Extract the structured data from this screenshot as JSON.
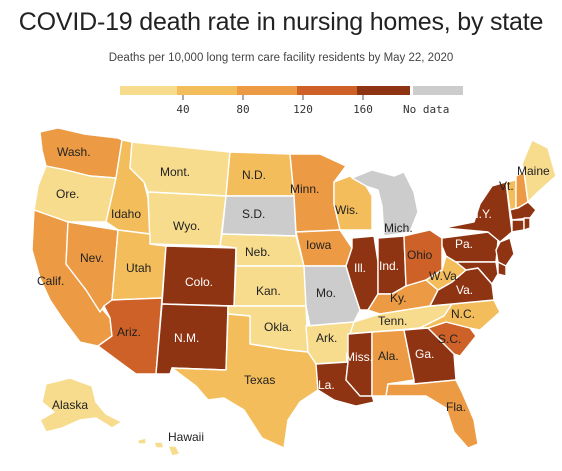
{
  "title": "COVID-19 death rate in nursing homes, by state",
  "subtitle": "Deaths per 10,000 long term care facility residents by May 22, 2020",
  "legend": {
    "bins": [
      {
        "color": "#f7dc8e"
      },
      {
        "color": "#f3bd5b"
      },
      {
        "color": "#ec9a43"
      },
      {
        "color": "#cd6128"
      },
      {
        "color": "#8f3413"
      }
    ],
    "ticks": [
      "40",
      "80",
      "120",
      "160"
    ],
    "no_data_label": "No data",
    "no_data_color": "#cccccc"
  },
  "palette": {
    "c1": "#f7dc8e",
    "c2": "#f3bd5b",
    "c3": "#ec9a43",
    "c4": "#cd6128",
    "c5": "#8f3413",
    "nd": "#cccccc"
  },
  "states": [
    {
      "id": "wa",
      "label": "Wash.",
      "level": "c3"
    },
    {
      "id": "or",
      "label": "Ore.",
      "level": "c1"
    },
    {
      "id": "ca",
      "label": "Calif.",
      "level": "c3"
    },
    {
      "id": "nv",
      "label": "Nev.",
      "level": "c3"
    },
    {
      "id": "id",
      "label": "Idaho",
      "level": "c2"
    },
    {
      "id": "mt",
      "label": "Mont.",
      "level": "c1"
    },
    {
      "id": "wy",
      "label": "Wyo.",
      "level": "c1"
    },
    {
      "id": "ut",
      "label": "Utah",
      "level": "c2"
    },
    {
      "id": "az",
      "label": "Ariz.",
      "level": "c4"
    },
    {
      "id": "co",
      "label": "Colo.",
      "level": "c5"
    },
    {
      "id": "nm",
      "label": "N.M.",
      "level": "c5"
    },
    {
      "id": "nd",
      "label": "N.D.",
      "level": "c2"
    },
    {
      "id": "sd",
      "label": "S.D.",
      "level": "nd"
    },
    {
      "id": "ne",
      "label": "Neb.",
      "level": "c1"
    },
    {
      "id": "ks",
      "label": "Kan.",
      "level": "c1"
    },
    {
      "id": "ok",
      "label": "Okla.",
      "level": "c1"
    },
    {
      "id": "tx",
      "label": "Texas",
      "level": "c2"
    },
    {
      "id": "mn",
      "label": "Minn.",
      "level": "c3"
    },
    {
      "id": "ia",
      "label": "Iowa",
      "level": "c3"
    },
    {
      "id": "mo",
      "label": "Mo.",
      "level": "nd"
    },
    {
      "id": "ar",
      "label": "Ark.",
      "level": "c1"
    },
    {
      "id": "la",
      "label": "La.",
      "level": "c5"
    },
    {
      "id": "wi",
      "label": "Wis.",
      "level": "c2"
    },
    {
      "id": "il",
      "label": "Ill.",
      "level": "c5"
    },
    {
      "id": "mi",
      "label": "Mich.",
      "level": "nd"
    },
    {
      "id": "in",
      "label": "Ind.",
      "level": "c5"
    },
    {
      "id": "oh",
      "label": "Ohio",
      "level": "c4"
    },
    {
      "id": "ky",
      "label": "Ky.",
      "level": "c3"
    },
    {
      "id": "tn",
      "label": "Tenn.",
      "level": "c1"
    },
    {
      "id": "ms",
      "label": "Miss.",
      "level": "c5"
    },
    {
      "id": "al",
      "label": "Ala.",
      "level": "c3"
    },
    {
      "id": "ga",
      "label": "Ga.",
      "level": "c5"
    },
    {
      "id": "fl",
      "label": "Fla.",
      "level": "c3"
    },
    {
      "id": "sc",
      "label": "S.C.",
      "level": "c4"
    },
    {
      "id": "nc",
      "label": "N.C.",
      "level": "c2"
    },
    {
      "id": "va",
      "label": "Va.",
      "level": "c5"
    },
    {
      "id": "wv",
      "label": "W.Va.",
      "level": "c2"
    },
    {
      "id": "pa",
      "label": "Pa.",
      "level": "c5"
    },
    {
      "id": "ny",
      "label": "N.Y.",
      "level": "c5"
    },
    {
      "id": "vt",
      "label": "Vt.",
      "level": "c2"
    },
    {
      "id": "nh",
      "label": "",
      "level": "c3"
    },
    {
      "id": "me",
      "label": "Maine",
      "level": "c1"
    },
    {
      "id": "ma",
      "label": "",
      "level": "c5"
    },
    {
      "id": "ct",
      "label": "",
      "level": "c5"
    },
    {
      "id": "ri",
      "label": "",
      "level": "c5"
    },
    {
      "id": "nj",
      "label": "",
      "level": "c5"
    },
    {
      "id": "de",
      "label": "",
      "level": "c5"
    },
    {
      "id": "md",
      "label": "",
      "level": "c5"
    },
    {
      "id": "ak",
      "label": "Alaska",
      "level": "c1"
    },
    {
      "id": "hi",
      "label": "Hawaii",
      "level": "c1"
    }
  ]
}
